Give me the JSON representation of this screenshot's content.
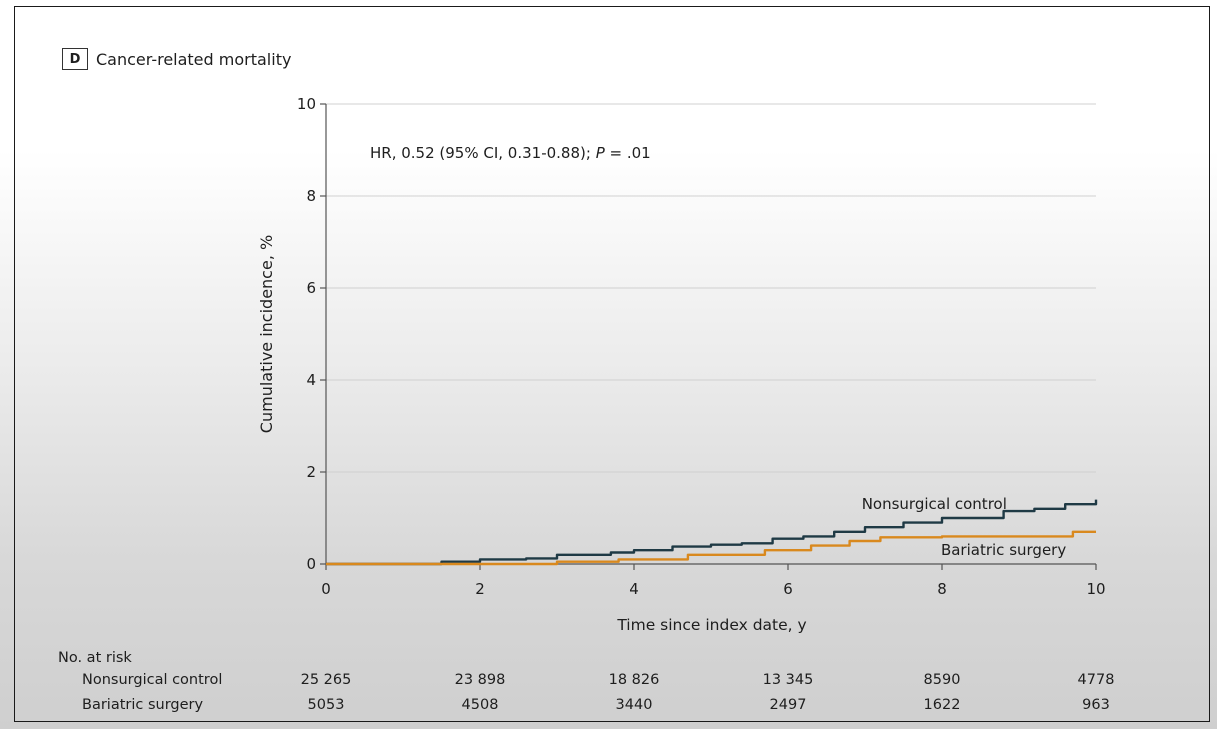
{
  "panel": {
    "letter": "D",
    "title": "Cancer-related mortality"
  },
  "annotation": "HR, 0.52 (95% CI, 0.31-0.88); P = .01",
  "colors": {
    "nonsurgical": "#1f3a45",
    "bariatric": "#d9891e",
    "grid": "#d0d0d0",
    "axis": "#555555"
  },
  "chart_data": {
    "type": "line",
    "title": "Cancer-related mortality",
    "xlabel": "Time since index date, y",
    "ylabel": "Cumulative incidence, %",
    "xlim": [
      0,
      10
    ],
    "ylim": [
      0,
      10
    ],
    "x_ticks": [
      0,
      2,
      4,
      6,
      8,
      10
    ],
    "y_ticks": [
      0,
      2,
      4,
      6,
      8,
      10
    ],
    "grid": "horizontal",
    "series": [
      {
        "name": "Nonsurgical control",
        "x": [
          0,
          1,
          1.5,
          2,
          2.6,
          3,
          3.7,
          4,
          4.5,
          5,
          5.4,
          5.8,
          6.2,
          6.6,
          7,
          7.5,
          8,
          8.4,
          8.8,
          9.2,
          9.6,
          10
        ],
        "y": [
          0,
          0,
          0.05,
          0.1,
          0.12,
          0.2,
          0.25,
          0.3,
          0.38,
          0.42,
          0.45,
          0.55,
          0.6,
          0.7,
          0.8,
          0.9,
          1.0,
          1.0,
          1.15,
          1.2,
          1.3,
          1.4
        ]
      },
      {
        "name": "Bariatric surgery",
        "x": [
          0,
          2,
          3,
          3.8,
          4.7,
          5.7,
          6.3,
          6.8,
          7.2,
          8,
          9,
          9.7,
          10
        ],
        "y": [
          0,
          0,
          0.05,
          0.1,
          0.2,
          0.3,
          0.4,
          0.5,
          0.58,
          0.6,
          0.6,
          0.7,
          0.7
        ]
      }
    ],
    "series_labels": [
      {
        "text": "Nonsurgical control",
        "at": [
          7.9,
          1.2
        ]
      },
      {
        "text": "Bariatric surgery",
        "at": [
          8.8,
          0.2
        ]
      }
    ]
  },
  "risk_table": {
    "title": "No. at risk",
    "columns": [
      0,
      2,
      4,
      6,
      8,
      10
    ],
    "rows": [
      {
        "label": "Nonsurgical control",
        "values": [
          "25 265",
          "23 898",
          "18 826",
          "13 345",
          "8590",
          "4778"
        ]
      },
      {
        "label": "Bariatric surgery",
        "values": [
          "5053",
          "4508",
          "3440",
          "2497",
          "1622",
          "963"
        ]
      }
    ]
  }
}
